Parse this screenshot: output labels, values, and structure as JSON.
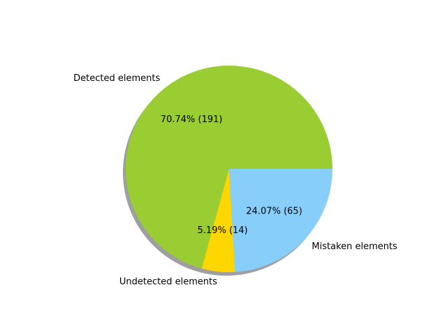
{
  "chart_data": {
    "type": "pie",
    "title": "",
    "slices": [
      {
        "label": "Detected elements",
        "value": 191,
        "percent": "70.74%",
        "color": "#9acd32"
      },
      {
        "label": "Undetected elements",
        "value": 14,
        "percent": "5.19%",
        "color": "#ffd700"
      },
      {
        "label": "Mistaken elements",
        "value": 65,
        "percent": "24.07%",
        "color": "#87cefa"
      }
    ],
    "shadow": true,
    "start_angle_deg": 0,
    "direction": "counterclockwise",
    "legend": "none"
  }
}
